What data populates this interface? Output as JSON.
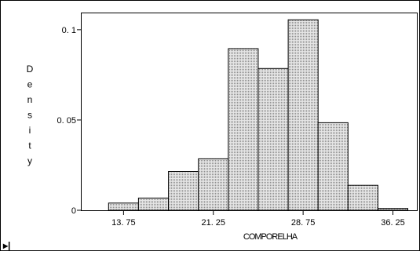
{
  "chart_data": {
    "type": "bar",
    "histogram": true,
    "xlabel": "COMPORELHA",
    "ylabel": "Density",
    "bin_width": 2.5,
    "bins": [
      {
        "start": 12.5,
        "end": 15.0,
        "density": 0.004
      },
      {
        "start": 15.0,
        "end": 17.5,
        "density": 0.0068
      },
      {
        "start": 17.5,
        "end": 20.0,
        "density": 0.0215
      },
      {
        "start": 20.0,
        "end": 22.5,
        "density": 0.0285
      },
      {
        "start": 22.5,
        "end": 25.0,
        "density": 0.0895
      },
      {
        "start": 25.0,
        "end": 27.5,
        "density": 0.0785
      },
      {
        "start": 27.5,
        "end": 30.0,
        "density": 0.1055
      },
      {
        "start": 30.0,
        "end": 32.5,
        "density": 0.0485
      },
      {
        "start": 32.5,
        "end": 35.0,
        "density": 0.0138
      },
      {
        "start": 35.0,
        "end": 37.5,
        "density": 0.001
      }
    ],
    "x_ticks": [
      13.75,
      21.25,
      28.75,
      36.25
    ],
    "x_tick_labels": [
      "13. 75",
      "21. 25",
      "28. 75",
      "36. 25"
    ],
    "xlim": [
      10.25,
      38.25
    ],
    "y_ticks": [
      0,
      0.05,
      0.1
    ],
    "y_tick_labels": [
      "0",
      "0. 05",
      "0. 1"
    ],
    "ylim": [
      0,
      0.1095
    ],
    "grid": false,
    "bar_fill": "#d4d4d4",
    "bar_stroke": "#000000"
  },
  "corner_glyph": "▸|"
}
